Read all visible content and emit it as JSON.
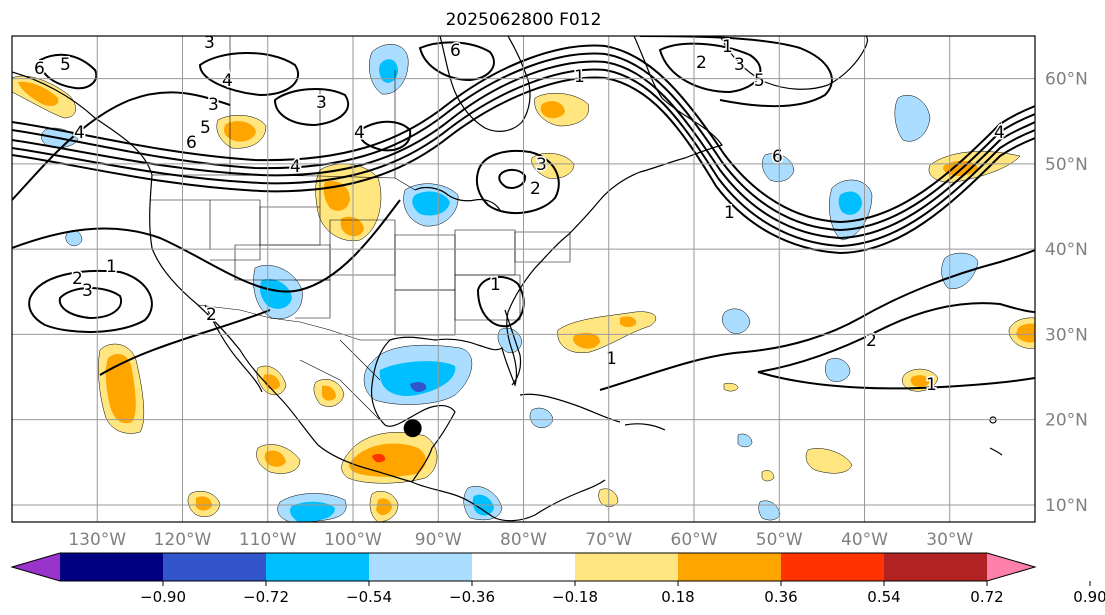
{
  "map": {
    "title": "2025062800 F012",
    "projection": "plate-carree",
    "extent": {
      "lon_min": -140,
      "lon_max": -20,
      "lat_min": 8,
      "lat_max": 65
    },
    "lon_ticks": [
      {
        "value": -130,
        "label": "130°W"
      },
      {
        "value": -120,
        "label": "120°W"
      },
      {
        "value": -110,
        "label": "110°W"
      },
      {
        "value": -100,
        "label": "100°W"
      },
      {
        "value": -90,
        "label": "90°W"
      },
      {
        "value": -80,
        "label": "80°W"
      },
      {
        "value": -70,
        "label": "70°W"
      },
      {
        "value": -60,
        "label": "60°W"
      },
      {
        "value": -50,
        "label": "50°W"
      },
      {
        "value": -40,
        "label": "40°W"
      },
      {
        "value": -30,
        "label": "30°W"
      }
    ],
    "lat_ticks": [
      {
        "value": 10,
        "label": "10°N"
      },
      {
        "value": 20,
        "label": "20°N"
      },
      {
        "value": 30,
        "label": "30°N"
      },
      {
        "value": 40,
        "label": "40°N"
      },
      {
        "value": 50,
        "label": "50°N"
      },
      {
        "value": 60,
        "label": "60°N"
      }
    ],
    "gridlines": true,
    "grid_color": "#999999",
    "tick_label_color": "#808080",
    "marker": {
      "lon": -93,
      "lat": 19,
      "color": "#000000"
    },
    "contour_labels": [
      "1",
      "2",
      "3",
      "4",
      "5",
      "6"
    ]
  },
  "colorbar": {
    "orientation": "horizontal",
    "extend": "both",
    "ticks": [
      "−0.90",
      "−0.72",
      "−0.54",
      "−0.36",
      "−0.18",
      "0.18",
      "0.36",
      "0.54",
      "0.72",
      "0.90"
    ],
    "colors": [
      "#9933cc",
      "#000080",
      "#3355cc",
      "#00bfff",
      "#aaddff",
      "#ffffff",
      "#ffe680",
      "#ffa500",
      "#ff3300",
      "#b22222",
      "#ff80aa"
    ]
  }
}
